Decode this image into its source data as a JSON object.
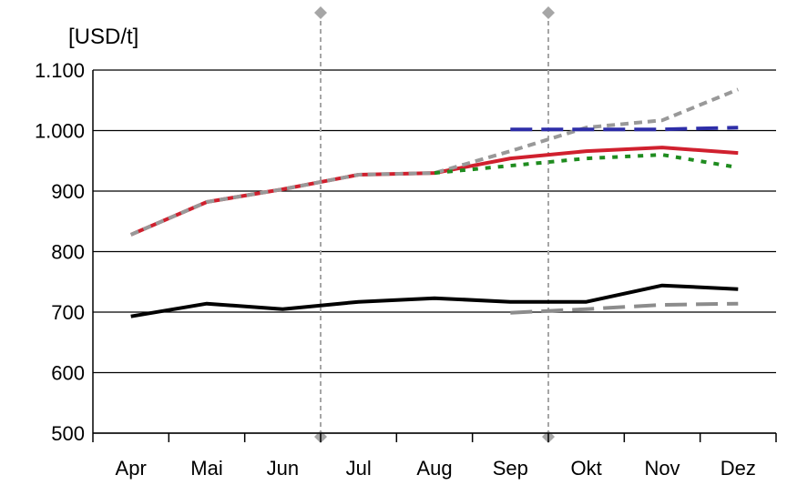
{
  "chart_data": {
    "type": "line",
    "unit_label": "[USD/t]",
    "categories": [
      "Apr",
      "Mai",
      "Jun",
      "Jul",
      "Aug",
      "Sep",
      "Okt",
      "Nov",
      "Dez"
    ],
    "ylim": [
      500,
      1100
    ],
    "yticks": [
      500,
      600,
      700,
      800,
      900,
      1000,
      1100
    ],
    "ytick_labels": [
      "500",
      "600",
      "700",
      "800",
      "900",
      "1.000",
      "1.100"
    ],
    "grid": true,
    "legend": "none",
    "vertical_markers_at": [
      2.5,
      5.5
    ],
    "series": [
      {
        "color": "#d0202e",
        "style": "solid",
        "x": [
          0,
          1,
          2,
          3,
          4,
          5,
          6,
          7,
          8
        ],
        "values": [
          828,
          882,
          903,
          927,
          930,
          954,
          966,
          972,
          963
        ]
      },
      {
        "color": "#000000",
        "style": "solid",
        "x": [
          0,
          1,
          2,
          3,
          4,
          5,
          6,
          7,
          8
        ],
        "values": [
          693,
          714,
          705,
          717,
          723,
          717,
          717,
          744,
          738
        ]
      },
      {
        "color": "#999999",
        "style": "short-dash",
        "x": [
          0,
          1,
          2,
          3,
          4,
          5,
          6,
          7,
          8
        ],
        "values": [
          828,
          882,
          903,
          927,
          930,
          966,
          1005,
          1017,
          1068
        ]
      },
      {
        "color": "#1f8c1f",
        "style": "dot",
        "x": [
          4,
          5,
          6,
          7,
          8
        ],
        "values": [
          930,
          942,
          954,
          960,
          939
        ]
      },
      {
        "color": "#2e2ea8",
        "style": "long-dash",
        "x": [
          5,
          6,
          7,
          8
        ],
        "values": [
          1002,
          1002,
          1002,
          1005
        ]
      },
      {
        "color": "#8c8c8c",
        "style": "long-dash",
        "x": [
          5,
          6,
          7,
          8
        ],
        "values": [
          699,
          705,
          712,
          714
        ]
      }
    ]
  }
}
